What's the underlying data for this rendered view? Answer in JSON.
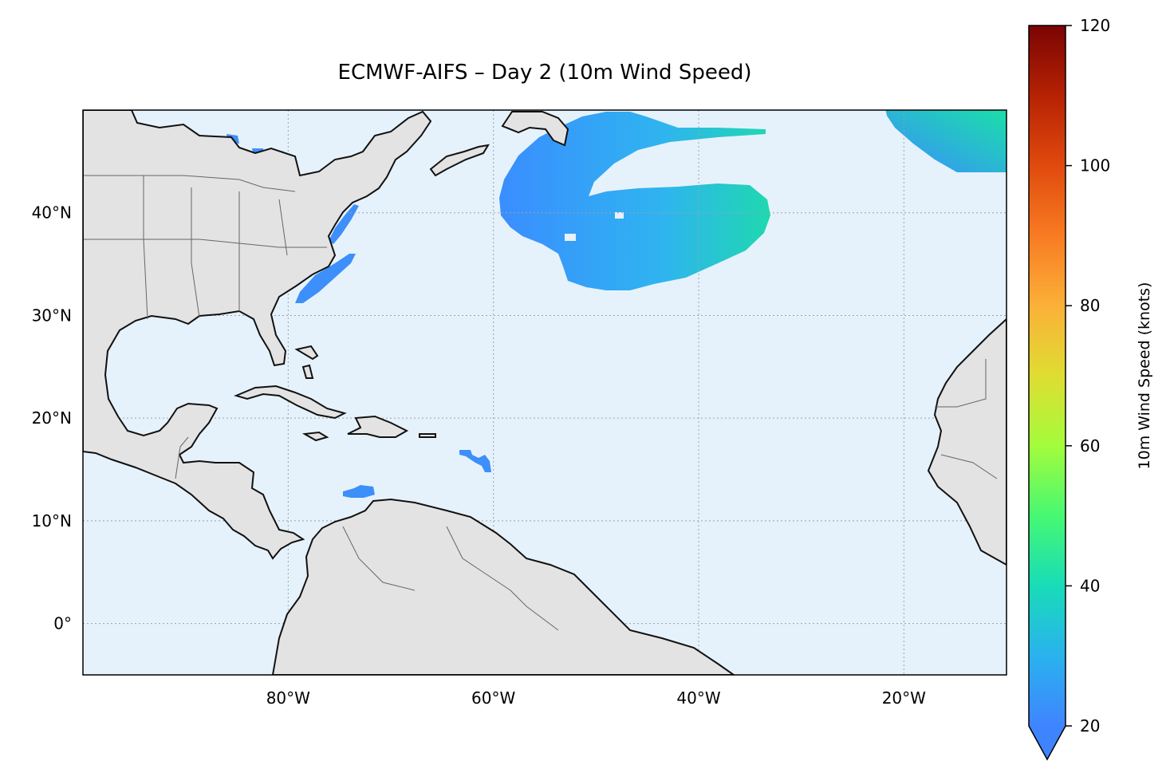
{
  "title": "ECMWF-AIFS – Day 2 (10m Wind Speed)",
  "map": {
    "extent": {
      "lon": [
        -100,
        -10
      ],
      "lat": [
        -5,
        50
      ]
    },
    "ocean_color": "#e6f2fb",
    "land_color": "#e3e3e3",
    "gridlines": {
      "lon": [
        -80,
        -60,
        -40,
        -20
      ],
      "lat": [
        0,
        10,
        20,
        30,
        40
      ]
    },
    "x_ticks": [
      "80°W",
      "60°W",
      "40°W",
      "20°W"
    ],
    "y_ticks": [
      "0°",
      "10°N",
      "20°N",
      "30°N",
      "40°N"
    ]
  },
  "colorbar": {
    "label": "10m Wind Speed (knots)",
    "min": 20,
    "max": 120,
    "extend": "min",
    "ticks": [
      "20",
      "40",
      "60",
      "80",
      "100",
      "120"
    ],
    "colormap": "turbo"
  },
  "wind_features": [
    {
      "name": "north-atlantic-gyre",
      "min_kt": 20,
      "max_kt": 32
    },
    {
      "name": "northeast-jet",
      "min_kt": 20,
      "max_kt": 33
    },
    {
      "name": "us-east-coast-patches",
      "min_kt": 20,
      "max_kt": 23
    },
    {
      "name": "caribbean-patches",
      "min_kt": 20,
      "max_kt": 22
    }
  ]
}
